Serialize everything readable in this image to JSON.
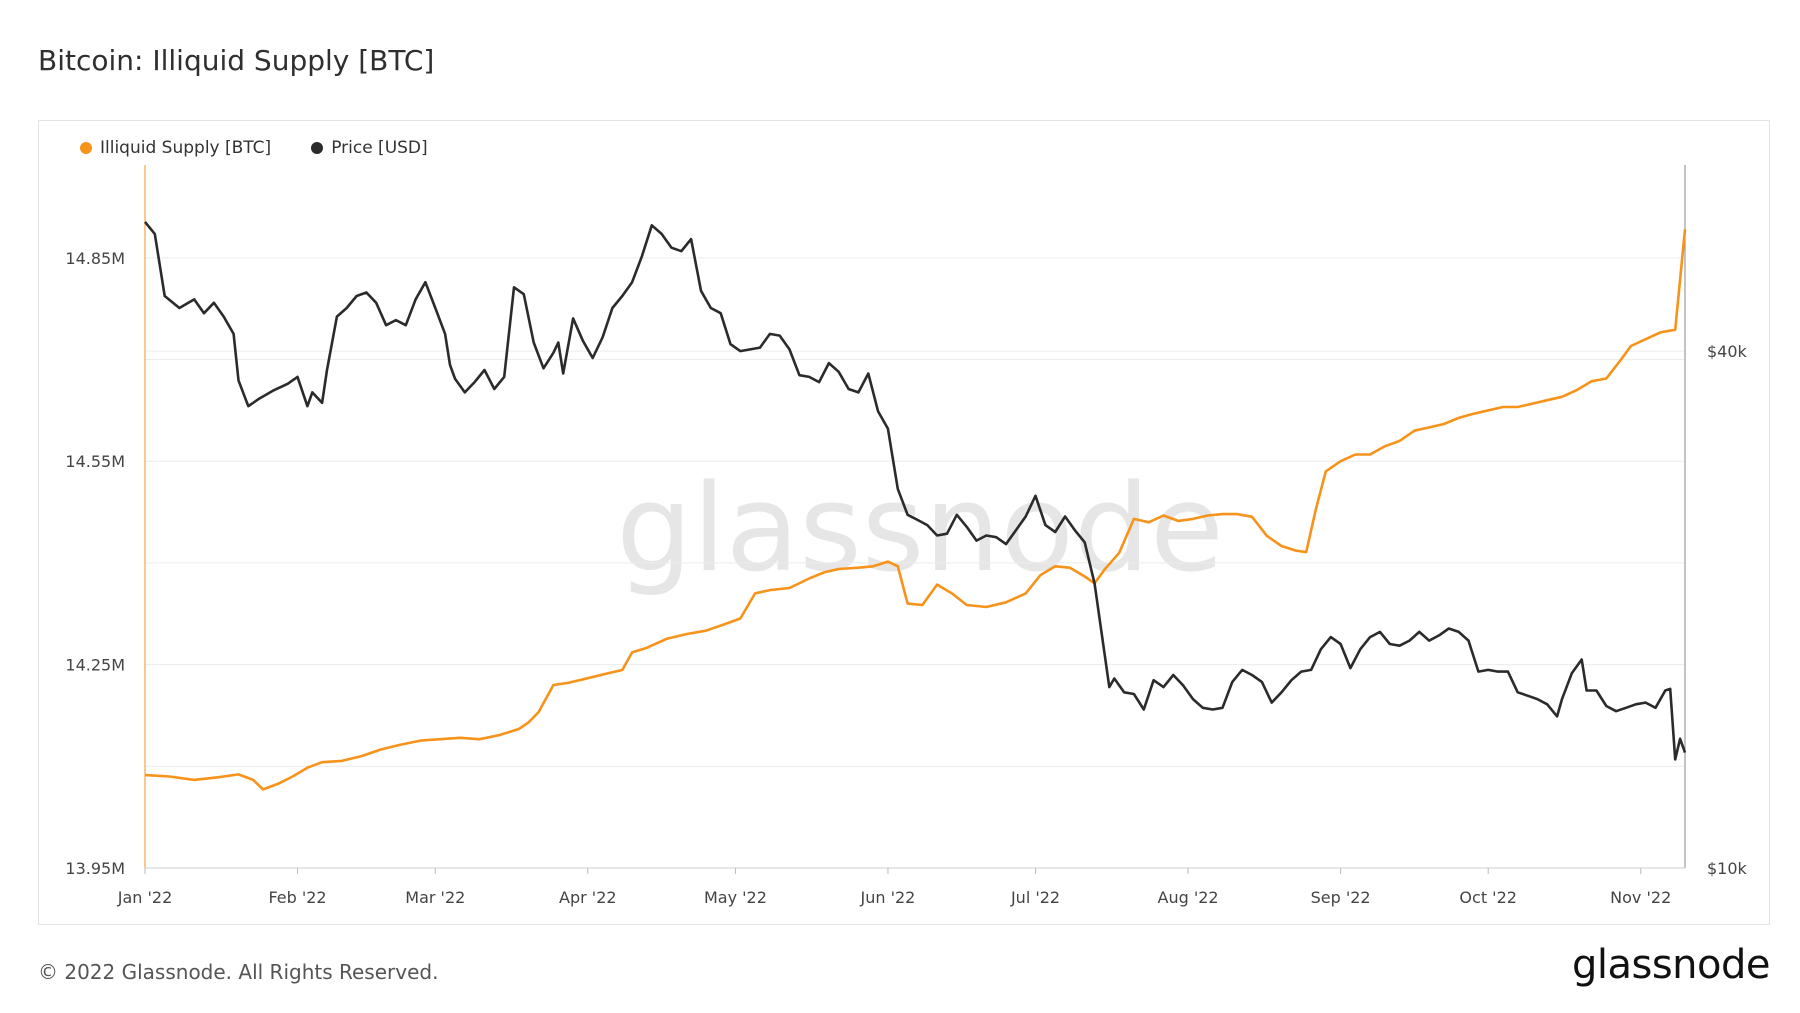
{
  "title": "Bitcoin: Illiquid Supply [BTC]",
  "footer": "© 2022 Glassnode. All Rights Reserved.",
  "brand": "glassnode",
  "watermark": "glassnode",
  "colors": {
    "supply": "#f7931a",
    "price": "#2b2b2b",
    "grid": "#ececec"
  },
  "chart_data": {
    "type": "line",
    "legend_position": "top-left",
    "grid": true,
    "x_ticks": [
      "Jan '22",
      "Feb '22",
      "Mar '22",
      "Apr '22",
      "May '22",
      "Jun '22",
      "Jul '22",
      "Aug '22",
      "Sep '22",
      "Oct '22",
      "Nov '22"
    ],
    "x_range": [
      0,
      313
    ],
    "y_left": {
      "ticks": [
        "13.95M",
        "14.25M",
        "14.55M",
        "14.85M"
      ],
      "tick_values": [
        13.95,
        14.25,
        14.55,
        14.85
      ],
      "range": [
        13.95,
        14.987
      ]
    },
    "y_right": {
      "ticks": [
        "$10k",
        "$40k"
      ],
      "tick_values": [
        10000,
        40000
      ],
      "range": [
        10000,
        50800
      ]
    },
    "series": [
      {
        "name": "Illiquid Supply [BTC]",
        "axis": "left",
        "unit": "M BTC",
        "points": [
          [
            0,
            14.087
          ],
          [
            5,
            14.085
          ],
          [
            10,
            14.08
          ],
          [
            15,
            14.084
          ],
          [
            19,
            14.088
          ],
          [
            22,
            14.08
          ],
          [
            24,
            14.066
          ],
          [
            27,
            14.074
          ],
          [
            30,
            14.085
          ],
          [
            33,
            14.098
          ],
          [
            36,
            14.106
          ],
          [
            40,
            14.108
          ],
          [
            44,
            14.115
          ],
          [
            48,
            14.125
          ],
          [
            52,
            14.132
          ],
          [
            56,
            14.138
          ],
          [
            60,
            14.14
          ],
          [
            64,
            14.142
          ],
          [
            68,
            14.14
          ],
          [
            72,
            14.146
          ],
          [
            76,
            14.155
          ],
          [
            78,
            14.165
          ],
          [
            80,
            14.18
          ],
          [
            83,
            14.22
          ],
          [
            86,
            14.223
          ],
          [
            90,
            14.23
          ],
          [
            94,
            14.237
          ],
          [
            97,
            14.242
          ],
          [
            99,
            14.268
          ],
          [
            102,
            14.275
          ],
          [
            106,
            14.288
          ],
          [
            110,
            14.295
          ],
          [
            114,
            14.3
          ],
          [
            118,
            14.31
          ],
          [
            121,
            14.318
          ],
          [
            124,
            14.355
          ],
          [
            127,
            14.36
          ],
          [
            131,
            14.363
          ],
          [
            135,
            14.377
          ],
          [
            138,
            14.386
          ],
          [
            141,
            14.391
          ],
          [
            145,
            14.393
          ],
          [
            148,
            14.395
          ],
          [
            151,
            14.402
          ],
          [
            153,
            14.395
          ],
          [
            155,
            14.34
          ],
          [
            158,
            14.338
          ],
          [
            161,
            14.368
          ],
          [
            164,
            14.355
          ],
          [
            167,
            14.338
          ],
          [
            171,
            14.335
          ],
          [
            175,
            14.342
          ],
          [
            179,
            14.355
          ],
          [
            182,
            14.382
          ],
          [
            185,
            14.395
          ],
          [
            188,
            14.393
          ],
          [
            191,
            14.38
          ],
          [
            193,
            14.37
          ],
          [
            195,
            14.39
          ],
          [
            198,
            14.415
          ],
          [
            201,
            14.465
          ],
          [
            204,
            14.46
          ],
          [
            207,
            14.47
          ],
          [
            210,
            14.462
          ],
          [
            213,
            14.465
          ],
          [
            216,
            14.47
          ],
          [
            219,
            14.472
          ],
          [
            222,
            14.472
          ],
          [
            225,
            14.468
          ],
          [
            228,
            14.44
          ],
          [
            231,
            14.425
          ],
          [
            234,
            14.418
          ],
          [
            236,
            14.416
          ],
          [
            238,
            14.48
          ],
          [
            240,
            14.535
          ],
          [
            243,
            14.55
          ],
          [
            246,
            14.56
          ],
          [
            249,
            14.56
          ],
          [
            252,
            14.572
          ],
          [
            255,
            14.58
          ],
          [
            258,
            14.595
          ],
          [
            261,
            14.6
          ],
          [
            264,
            14.605
          ],
          [
            267,
            14.614
          ],
          [
            270,
            14.62
          ],
          [
            273,
            14.625
          ],
          [
            276,
            14.63
          ],
          [
            279,
            14.63
          ],
          [
            282,
            14.635
          ],
          [
            285,
            14.64
          ],
          [
            288,
            14.645
          ],
          [
            291,
            14.655
          ],
          [
            294,
            14.668
          ],
          [
            297,
            14.672
          ],
          [
            300,
            14.7
          ],
          [
            302,
            14.72
          ],
          [
            305,
            14.73
          ],
          [
            308,
            14.74
          ],
          [
            311,
            14.744
          ],
          [
            313,
            14.892
          ]
        ]
      },
      {
        "name": "Price [USD]",
        "axis": "right",
        "unit": "USD",
        "points": [
          [
            0,
            47500
          ],
          [
            2,
            46800
          ],
          [
            4,
            43200
          ],
          [
            7,
            42500
          ],
          [
            10,
            43000
          ],
          [
            12,
            42200
          ],
          [
            14,
            42800
          ],
          [
            16,
            42000
          ],
          [
            18,
            41000
          ],
          [
            19,
            38300
          ],
          [
            21,
            36800
          ],
          [
            23,
            37200
          ],
          [
            26,
            37700
          ],
          [
            29,
            38100
          ],
          [
            31,
            38500
          ],
          [
            33,
            36800
          ],
          [
            34,
            37600
          ],
          [
            36,
            37000
          ],
          [
            37,
            38900
          ],
          [
            39,
            42000
          ],
          [
            41,
            42500
          ],
          [
            43,
            43200
          ],
          [
            45,
            43400
          ],
          [
            47,
            42800
          ],
          [
            49,
            41500
          ],
          [
            51,
            41800
          ],
          [
            53,
            41500
          ],
          [
            55,
            43000
          ],
          [
            57,
            44000
          ],
          [
            59,
            42500
          ],
          [
            61,
            41000
          ],
          [
            62,
            39200
          ],
          [
            63,
            38400
          ],
          [
            65,
            37600
          ],
          [
            67,
            38200
          ],
          [
            69,
            38900
          ],
          [
            71,
            37800
          ],
          [
            73,
            38500
          ],
          [
            75,
            43700
          ],
          [
            77,
            43300
          ],
          [
            79,
            40500
          ],
          [
            81,
            39000
          ],
          [
            83,
            39900
          ],
          [
            84,
            40500
          ],
          [
            85,
            38700
          ],
          [
            87,
            41900
          ],
          [
            89,
            40600
          ],
          [
            91,
            39600
          ],
          [
            93,
            40800
          ],
          [
            95,
            42500
          ],
          [
            97,
            43200
          ],
          [
            99,
            44000
          ],
          [
            101,
            45500
          ],
          [
            103,
            47300
          ],
          [
            105,
            46800
          ],
          [
            107,
            46000
          ],
          [
            109,
            45800
          ],
          [
            111,
            46500
          ],
          [
            113,
            43500
          ],
          [
            115,
            42500
          ],
          [
            117,
            42200
          ],
          [
            119,
            40400
          ],
          [
            121,
            40000
          ],
          [
            123,
            40100
          ],
          [
            125,
            40200
          ],
          [
            127,
            41000
          ],
          [
            129,
            40900
          ],
          [
            131,
            40100
          ],
          [
            133,
            38600
          ],
          [
            135,
            38500
          ],
          [
            137,
            38200
          ],
          [
            139,
            39300
          ],
          [
            141,
            38800
          ],
          [
            143,
            37800
          ],
          [
            145,
            37600
          ],
          [
            147,
            38700
          ],
          [
            149,
            36500
          ],
          [
            151,
            35500
          ],
          [
            153,
            32000
          ],
          [
            155,
            30500
          ],
          [
            157,
            30200
          ],
          [
            159,
            29900
          ],
          [
            161,
            29300
          ],
          [
            163,
            29400
          ],
          [
            165,
            30500
          ],
          [
            167,
            29800
          ],
          [
            169,
            29000
          ],
          [
            171,
            29300
          ],
          [
            173,
            29200
          ],
          [
            175,
            28800
          ],
          [
            177,
            29600
          ],
          [
            179,
            30400
          ],
          [
            181,
            31600
          ],
          [
            183,
            29900
          ],
          [
            185,
            29500
          ],
          [
            187,
            30400
          ],
          [
            189,
            29600
          ],
          [
            191,
            28900
          ],
          [
            193,
            26500
          ],
          [
            195,
            22500
          ],
          [
            196,
            20500
          ],
          [
            197,
            21000
          ],
          [
            199,
            20200
          ],
          [
            201,
            20100
          ],
          [
            203,
            19200
          ],
          [
            205,
            20900
          ],
          [
            207,
            20500
          ],
          [
            209,
            21200
          ],
          [
            211,
            20600
          ],
          [
            213,
            19800
          ],
          [
            215,
            19300
          ],
          [
            217,
            19200
          ],
          [
            219,
            19300
          ],
          [
            221,
            20800
          ],
          [
            223,
            21500
          ],
          [
            225,
            21200
          ],
          [
            227,
            20800
          ],
          [
            229,
            19600
          ],
          [
            231,
            20200
          ],
          [
            233,
            20900
          ],
          [
            235,
            21400
          ],
          [
            237,
            21500
          ],
          [
            239,
            22700
          ],
          [
            241,
            23400
          ],
          [
            243,
            23000
          ],
          [
            245,
            21600
          ],
          [
            247,
            22700
          ],
          [
            249,
            23400
          ],
          [
            251,
            23700
          ],
          [
            253,
            23000
          ],
          [
            255,
            22900
          ],
          [
            257,
            23200
          ],
          [
            259,
            23700
          ],
          [
            261,
            23200
          ],
          [
            263,
            23500
          ],
          [
            265,
            23900
          ],
          [
            267,
            23700
          ],
          [
            269,
            23200
          ],
          [
            271,
            21400
          ],
          [
            273,
            21500
          ],
          [
            275,
            21400
          ],
          [
            277,
            21400
          ],
          [
            279,
            20200
          ],
          [
            281,
            20000
          ],
          [
            283,
            19800
          ],
          [
            285,
            19500
          ],
          [
            287,
            18800
          ],
          [
            288,
            19800
          ],
          [
            290,
            21300
          ],
          [
            292,
            22100
          ],
          [
            293,
            20300
          ],
          [
            295,
            20300
          ],
          [
            297,
            19400
          ],
          [
            299,
            19100
          ],
          [
            301,
            19300
          ],
          [
            303,
            19500
          ],
          [
            305,
            19600
          ],
          [
            307,
            19300
          ],
          [
            309,
            20300
          ],
          [
            310,
            20400
          ],
          [
            311,
            16300
          ],
          [
            312,
            17500
          ],
          [
            313,
            16700
          ]
        ]
      }
    ]
  }
}
